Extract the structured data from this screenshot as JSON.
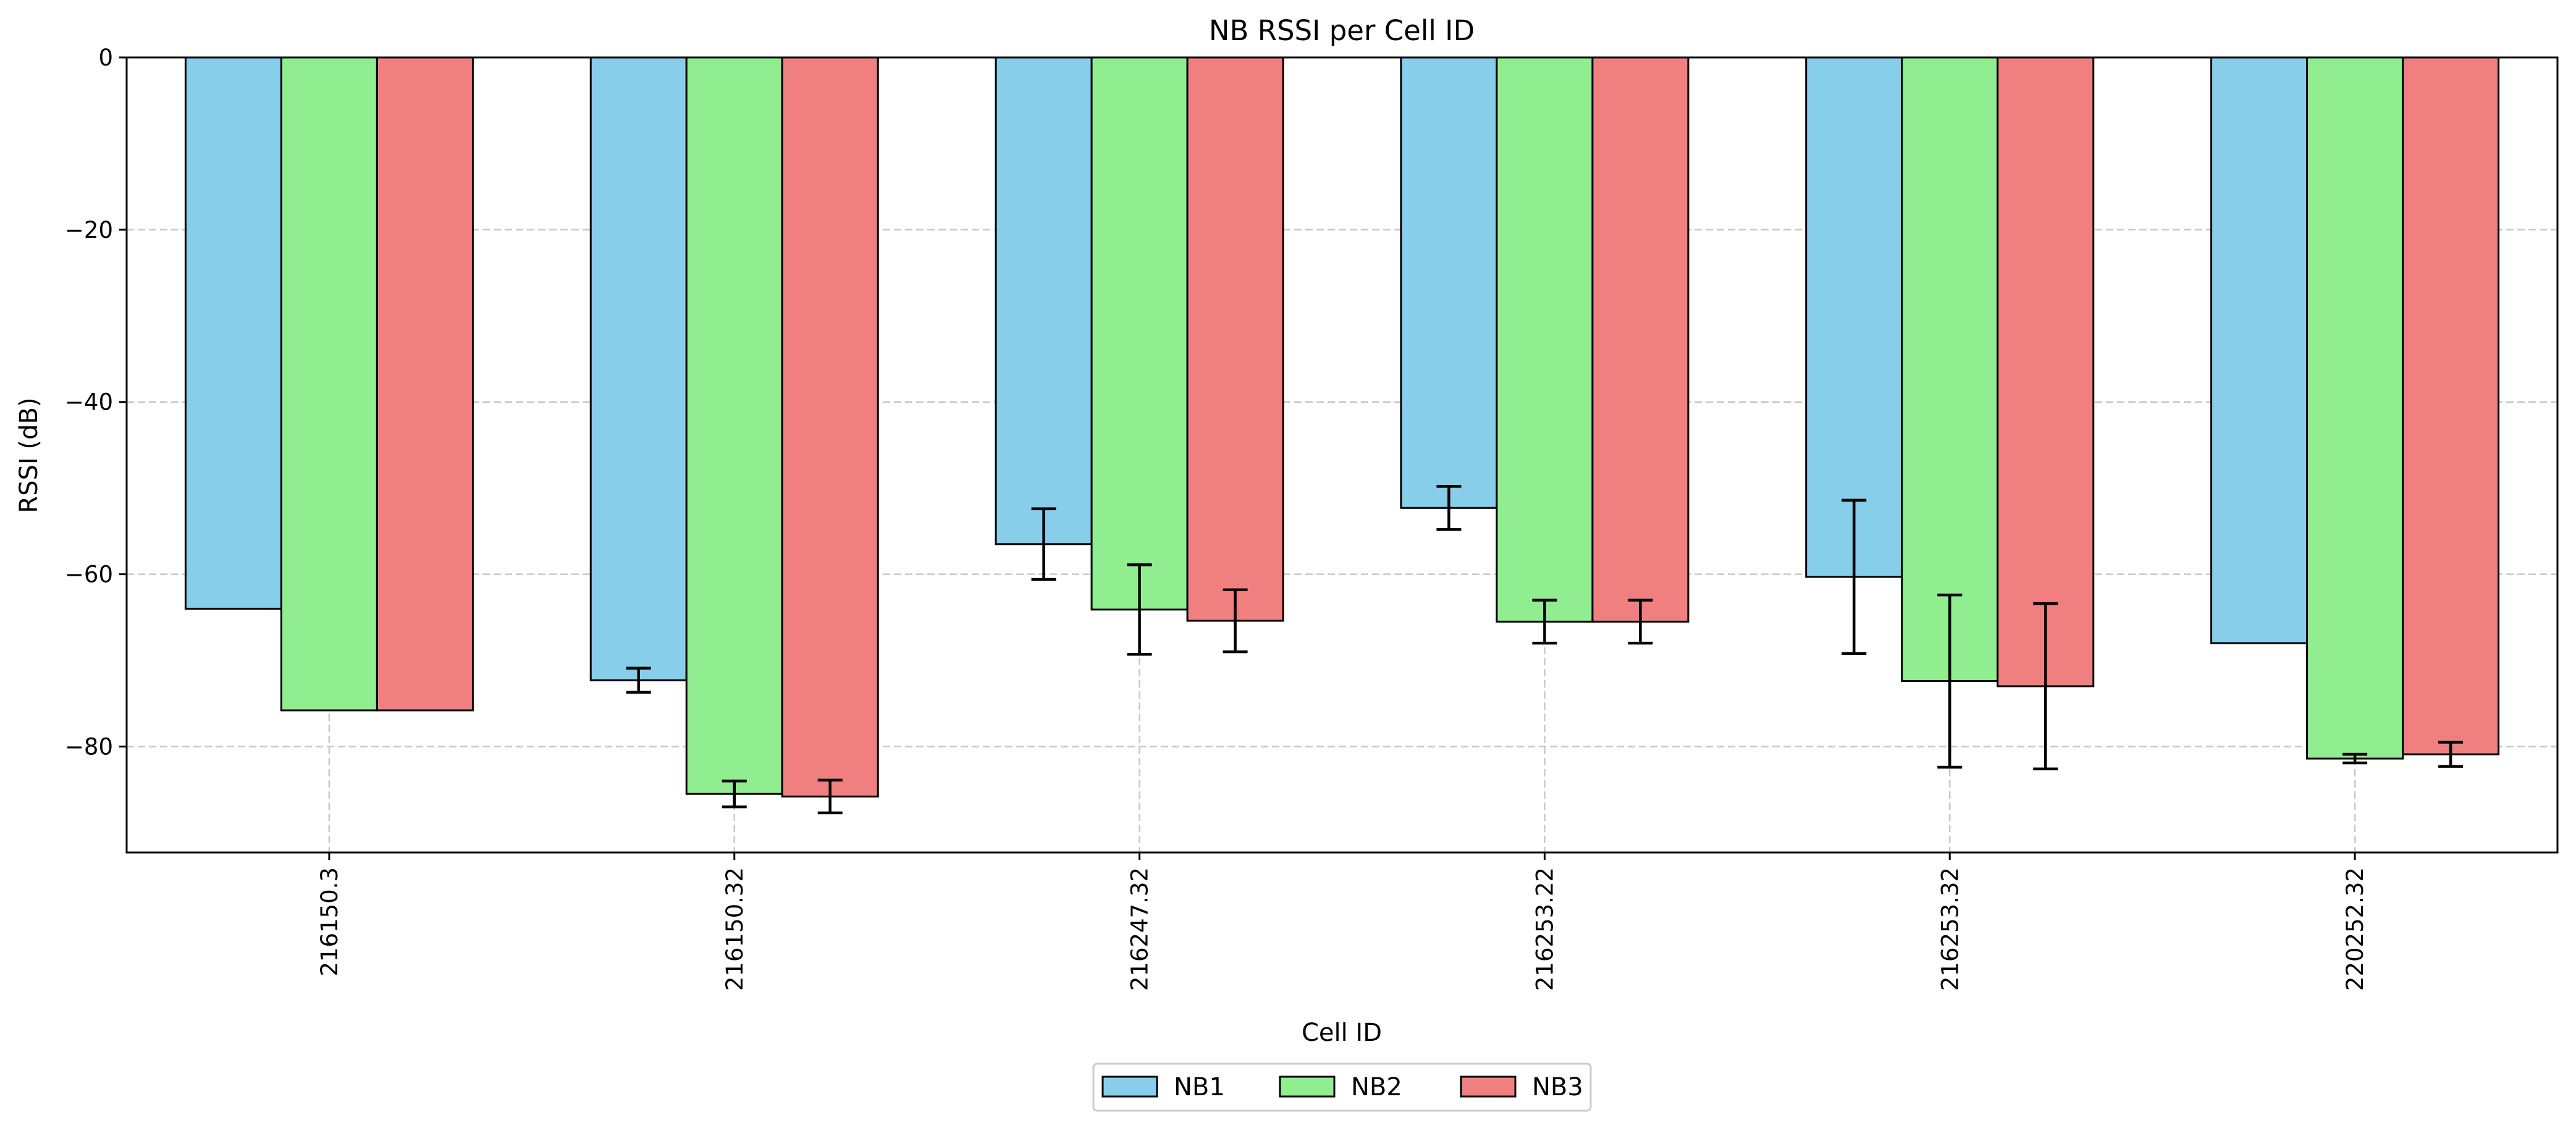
{
  "chart_data": {
    "type": "bar",
    "title": "NB RSSI per Cell ID",
    "xlabel": "Cell ID",
    "ylabel": "RSSI (dB)",
    "categories": [
      "216150.3",
      "216150.32",
      "216247.32",
      "216253.22",
      "216253.32",
      "220252.32"
    ],
    "series": [
      {
        "name": "NB1",
        "color": "#87CEEB",
        "values": [
          -64,
          -72.3,
          -56.5,
          -52.3,
          -60.3,
          -68
        ],
        "errors": [
          0,
          1.4,
          4.1,
          2.5,
          8.9,
          0
        ]
      },
      {
        "name": "NB2",
        "color": "#90EE90",
        "values": [
          -75.8,
          -85.5,
          -64.1,
          -65.5,
          -72.4,
          -81.4
        ],
        "errors": [
          0,
          1.5,
          5.2,
          2.5,
          10,
          0.5
        ]
      },
      {
        "name": "NB3",
        "color": "#F08080",
        "values": [
          -75.8,
          -85.8,
          -65.4,
          -65.5,
          -73,
          -80.9
        ],
        "errors": [
          0,
          1.9,
          3.6,
          2.5,
          9.6,
          1.4
        ]
      }
    ],
    "ylim": [
      -92.3,
      0
    ],
    "yticks": [
      0,
      -20,
      -40,
      -60,
      -80
    ],
    "ytick_labels": [
      "0",
      "−20",
      "−40",
      "−60",
      "−80"
    ],
    "grid": true,
    "legend_position": "bottom-center"
  }
}
